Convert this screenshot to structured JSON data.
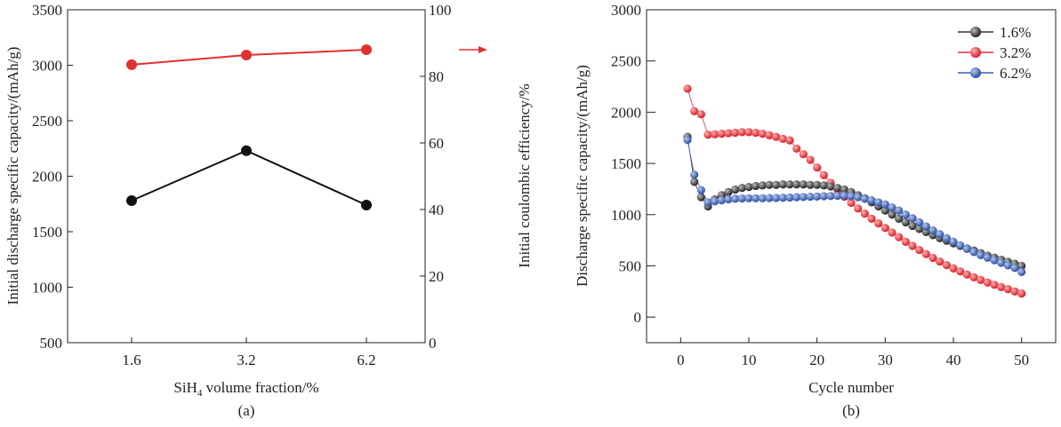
{
  "chart_data": [
    {
      "type": "line",
      "caption": "(a)",
      "xlabel": "SiH4 volume fraction/%",
      "xlabel_main": "SiH",
      "xlabel_sub": "4",
      "xlabel_rest": " volume fraction/%",
      "ylabel": "Initial discharge specific capacity/(mAh/g)",
      "y2label": "Initial coulombic efficiency/%",
      "categories": [
        "1.6",
        "3.2",
        "6.2"
      ],
      "ylim": [
        500,
        3500
      ],
      "yticks": [
        500,
        1000,
        1500,
        2000,
        2500,
        3000,
        3500
      ],
      "y2lim": [
        0,
        100
      ],
      "y2ticks": [
        0,
        20,
        40,
        60,
        80,
        100
      ],
      "series": [
        {
          "axis": "left",
          "color": "#111111",
          "values": [
            1780,
            2230,
            1740
          ]
        },
        {
          "axis": "right",
          "color": "#e03030",
          "values": [
            83.5,
            86.4,
            88
          ]
        }
      ],
      "annotation": "arrow pointing to right axis",
      "grid": false
    },
    {
      "type": "line",
      "caption": "(b)",
      "xlabel": "Cycle number",
      "ylabel": "Discharge specific capacity/(mAh/g)",
      "xlim": [
        -5,
        55
      ],
      "xticks": [
        0,
        10,
        20,
        30,
        40,
        50
      ],
      "ylim": [
        -250,
        3000
      ],
      "yticks": [
        0,
        500,
        1000,
        1500,
        2000,
        2500,
        3000
      ],
      "legend": "top-right",
      "grid": false,
      "series": [
        {
          "name": "1.6%",
          "color": "#333333",
          "values": [
            1760,
            1320,
            1170,
            1080,
            1150,
            1190,
            1220,
            1245,
            1260,
            1270,
            1280,
            1285,
            1290,
            1290,
            1295,
            1295,
            1295,
            1295,
            1290,
            1290,
            1285,
            1275,
            1260,
            1245,
            1220,
            1190,
            1160,
            1120,
            1080,
            1040,
            1000,
            960,
            925,
            890,
            860,
            830,
            800,
            770,
            745,
            720,
            695,
            670,
            650,
            625,
            600,
            580,
            560,
            540,
            520,
            500
          ]
        },
        {
          "name": "3.2%",
          "color": "#e03038",
          "values": [
            2230,
            2010,
            1980,
            1780,
            1785,
            1790,
            1795,
            1800,
            1805,
            1805,
            1800,
            1790,
            1775,
            1760,
            1740,
            1725,
            1645,
            1590,
            1535,
            1460,
            1385,
            1310,
            1240,
            1175,
            1115,
            1060,
            1010,
            960,
            915,
            870,
            825,
            780,
            735,
            695,
            655,
            615,
            578,
            542,
            507,
            475,
            445,
            415,
            388,
            362,
            337,
            315,
            293,
            272,
            250,
            230
          ]
        },
        {
          "name": "6.2%",
          "color": "#3a5eb0",
          "values": [
            1730,
            1390,
            1240,
            1120,
            1130,
            1140,
            1150,
            1155,
            1158,
            1160,
            1160,
            1160,
            1162,
            1163,
            1165,
            1167,
            1170,
            1172,
            1175,
            1177,
            1180,
            1182,
            1184,
            1185,
            1180,
            1170,
            1155,
            1140,
            1120,
            1100,
            1070,
            1040,
            1000,
            965,
            925,
            885,
            845,
            810,
            770,
            735,
            700,
            665,
            635,
            605,
            580,
            555,
            530,
            505,
            480,
            440
          ]
        }
      ]
    }
  ]
}
